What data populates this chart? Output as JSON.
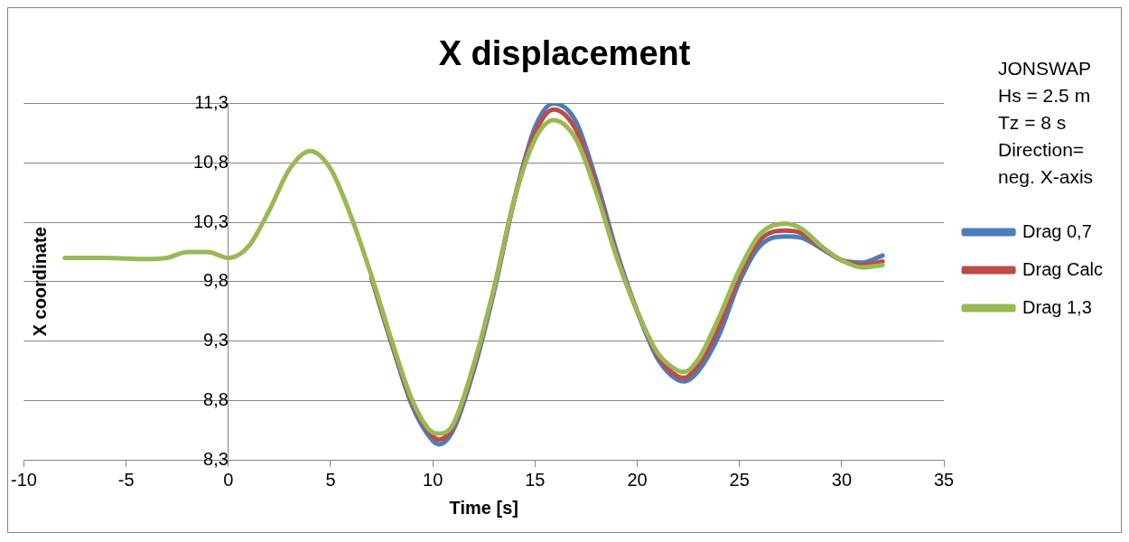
{
  "chart_data": {
    "type": "line",
    "title": "X displacement",
    "xlabel": "Time [s]",
    "ylabel": "X coordinate",
    "annotations": [
      "JONSWAP",
      "Hs = 2.5 m",
      "Tz = 8 s",
      "Direction= neg. X-axis"
    ],
    "x": [
      -8,
      -6,
      -4,
      -3,
      -2,
      -1,
      0,
      1,
      2,
      3,
      4,
      5,
      6,
      7,
      8,
      9,
      10,
      10.3,
      11,
      12,
      13,
      14,
      15,
      15.9,
      17,
      18,
      19,
      20,
      21,
      22,
      22.3,
      23,
      24,
      25,
      26,
      27.2,
      28,
      29,
      30,
      31,
      32
    ],
    "series": [
      {
        "name": "Drag 0,7",
        "color": "#4a7ebb",
        "values": [
          null,
          null,
          null,
          null,
          null,
          null,
          null,
          null,
          null,
          null,
          null,
          null,
          null,
          9.83,
          9.27,
          8.75,
          8.46,
          8.43,
          8.55,
          9.05,
          9.72,
          10.5,
          11.1,
          11.3,
          11.15,
          10.65,
          10.05,
          9.55,
          9.15,
          8.97,
          8.96,
          9.05,
          9.35,
          9.8,
          10.1,
          10.18,
          10.17,
          10.08,
          9.98,
          9.96,
          10.02
        ]
      },
      {
        "name": "Drag Calc",
        "color": "#be4b48",
        "values": [
          null,
          null,
          null,
          null,
          null,
          null,
          null,
          null,
          null,
          null,
          null,
          null,
          null,
          9.84,
          9.28,
          8.78,
          8.5,
          8.47,
          8.58,
          9.08,
          9.74,
          10.5,
          11.05,
          11.25,
          11.08,
          10.6,
          10.02,
          9.55,
          9.18,
          9.0,
          8.99,
          9.1,
          9.42,
          9.85,
          10.15,
          10.23,
          10.21,
          10.09,
          9.98,
          9.94,
          9.97
        ]
      },
      {
        "name": "Drag 1,3",
        "color": "#98b954",
        "values": [
          10.0,
          10.0,
          9.99,
          10.0,
          10.05,
          10.05,
          10.0,
          10.1,
          10.4,
          10.75,
          10.9,
          10.75,
          10.35,
          9.85,
          9.3,
          8.8,
          8.53,
          8.52,
          8.6,
          9.1,
          9.75,
          10.5,
          11.0,
          11.16,
          11.0,
          10.55,
          10.0,
          9.55,
          9.2,
          9.05,
          9.04,
          9.15,
          9.5,
          9.9,
          10.2,
          10.29,
          10.25,
          10.1,
          9.98,
          9.92,
          9.94
        ]
      }
    ],
    "xlim": [
      -10,
      35
    ],
    "xticks": [
      -10,
      -5,
      0,
      5,
      10,
      15,
      20,
      25,
      30,
      35
    ],
    "ylim": [
      8.3,
      11.3
    ],
    "yticks": [
      {
        "value": 8.3,
        "label": "8,3"
      },
      {
        "value": 8.8,
        "label": "8,8"
      },
      {
        "value": 9.3,
        "label": "9,3"
      },
      {
        "value": 9.8,
        "label": "9,8"
      },
      {
        "value": 10.3,
        "label": "10,3"
      },
      {
        "value": 10.8,
        "label": "10,8"
      },
      {
        "value": 11.3,
        "label": "11,3"
      }
    ],
    "grid": "y",
    "legend": "right",
    "marker": "none",
    "line_style": "solid"
  }
}
